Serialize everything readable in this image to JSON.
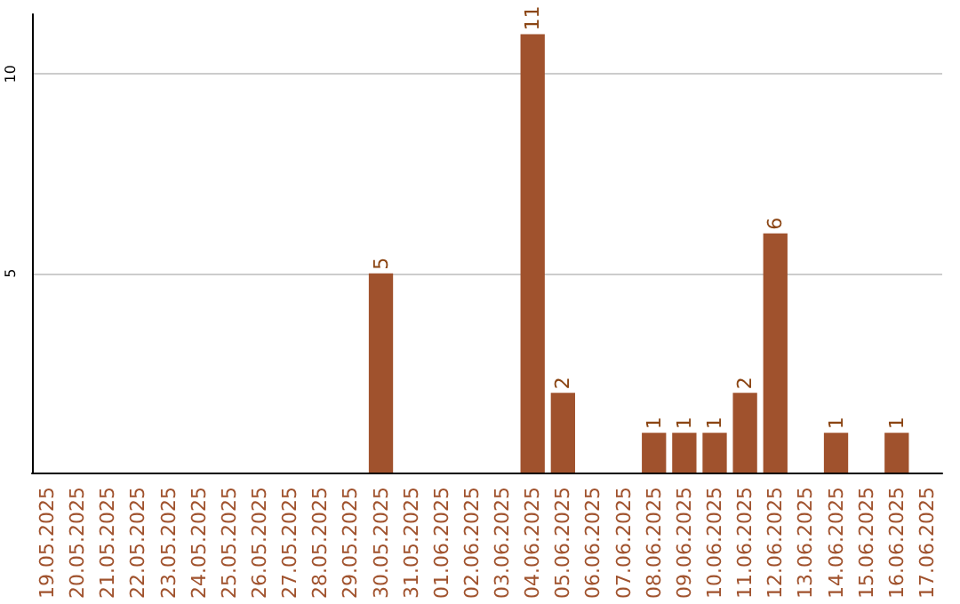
{
  "chart_data": {
    "type": "bar",
    "categories": [
      "19.05.2025",
      "20.05.2025",
      "21.05.2025",
      "22.05.2025",
      "23.05.2025",
      "24.05.2025",
      "25.05.2025",
      "26.05.2025",
      "27.05.2025",
      "28.05.2025",
      "29.05.2025",
      "30.05.2025",
      "31.05.2025",
      "01.06.2025",
      "02.06.2025",
      "03.06.2025",
      "04.06.2025",
      "05.06.2025",
      "06.06.2025",
      "07.06.2025",
      "08.06.2025",
      "09.06.2025",
      "10.06.2025",
      "11.06.2025",
      "12.06.2025",
      "13.06.2025",
      "14.06.2025",
      "15.06.2025",
      "16.06.2025",
      "17.06.2025"
    ],
    "values": [
      0,
      0,
      0,
      0,
      0,
      0,
      0,
      0,
      0,
      0,
      0,
      5,
      0,
      0,
      0,
      0,
      11,
      2,
      0,
      0,
      1,
      1,
      1,
      2,
      6,
      0,
      1,
      0,
      1,
      0
    ],
    "value_labels": [
      null,
      null,
      null,
      null,
      null,
      null,
      null,
      null,
      null,
      null,
      null,
      "5",
      null,
      null,
      null,
      null,
      "11",
      "2",
      null,
      null,
      "1",
      "1",
      "1",
      "2",
      "6",
      null,
      "1",
      null,
      "1",
      null
    ],
    "color": "#a0522d",
    "ylim": [
      0,
      11.5
    ],
    "yticks": [
      5,
      10
    ],
    "grid": "y"
  }
}
